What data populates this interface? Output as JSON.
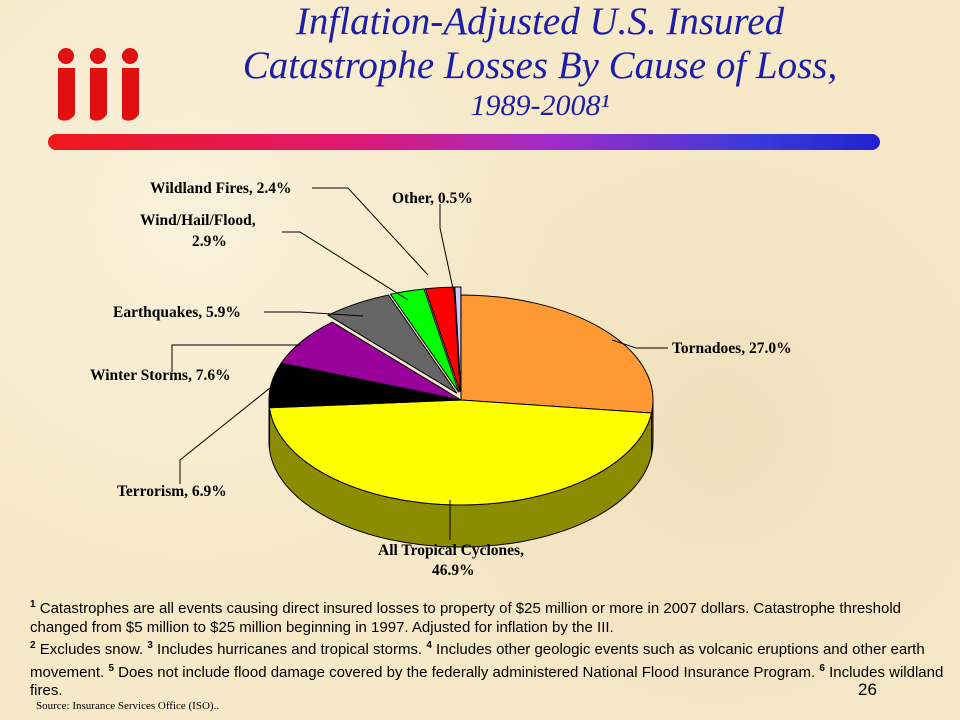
{
  "header": {
    "title_line1": "Inflation-Adjusted U.S. Insured",
    "title_line2": "Catastrophe Losses By Cause of Loss,",
    "title_line3": "1989-2008¹",
    "logo_text": "iii"
  },
  "chart_data": {
    "type": "pie",
    "slices": [
      {
        "label": "Tornadoes, 27.0%",
        "value": 27.0,
        "color": "#ff9933"
      },
      {
        "label": "All Tropical Cyclones, 46.9%",
        "value": 46.9,
        "color": "#ffff00"
      },
      {
        "label": "Terrorism, 6.9%",
        "value": 6.9,
        "color": "#000000"
      },
      {
        "label": "Winter Storms, 7.6%",
        "value": 7.6,
        "color": "#990099"
      },
      {
        "label": "Earthquakes, 5.9%",
        "value": 5.9,
        "color": "#666666"
      },
      {
        "label": "Wind/Hail/Flood, 2.9%",
        "value": 2.9,
        "color": "#00ff00"
      },
      {
        "label": "Wildland Fires, 2.4%",
        "value": 2.4,
        "color": "#ff0000"
      },
      {
        "label": "Other, 0.5%",
        "value": 0.5,
        "color": "#ccccff"
      }
    ]
  },
  "labels": {
    "wildland": "Wildland Fires, 2.4%",
    "other": "Other, 0.5%",
    "windhail_1": "Wind/Hail/Flood,",
    "windhail_2": "2.9%",
    "earthquakes": "Earthquakes, 5.9%",
    "tornadoes": "Tornadoes, 27.0%",
    "winter": "Winter Storms, 7.6%",
    "terrorism": "Terrorism, 6.9%",
    "tropical_1": "All Tropical Cyclones,",
    "tropical_2": "46.9%"
  },
  "footnotes": {
    "n1": "1",
    "t1": " Catastrophes are all events causing direct insured losses to property of $25 million or more in 2007 dollars. Catastrophe threshold changed from $5 million to $25 million beginning in 1997. Adjusted for inflation by the III.",
    "n2": "2",
    "t2": " Excludes snow. ",
    "n3": "3",
    "t3": " Includes hurricanes and tropical storms. ",
    "n4": "4",
    "t4": " Includes other geologic events such as volcanic eruptions and other earth movement. ",
    "n5": "5",
    "t5": " Does not include flood damage covered by the federally administered National Flood Insurance Program. ",
    "n6": "6",
    "t6": " Includes wildland fires."
  },
  "source": "Source: Insurance Services Office (ISO)..",
  "page_number": "26"
}
